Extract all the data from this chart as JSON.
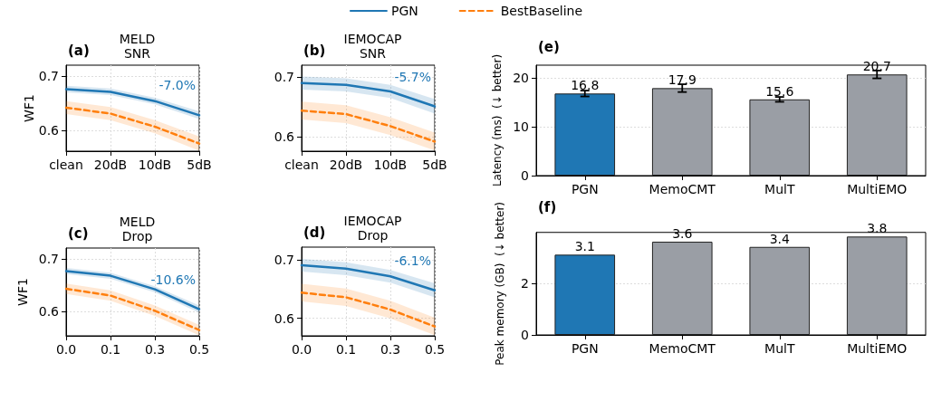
{
  "chart_data": [
    {
      "type": "line",
      "title": "MELD\nSNR",
      "ylabel": "WF1",
      "annotations": [
        "(a)",
        "-7.0%"
      ],
      "categories": [
        "clean",
        "20dB",
        "10dB",
        "5dB"
      ],
      "ylim": [
        0.562,
        0.72
      ],
      "yticks": [
        0.6,
        0.7
      ],
      "grid": true,
      "legend": "top",
      "marker": "none",
      "series": [
        {
          "name": "PGN",
          "color": "#1f77b4",
          "line_style": "solid",
          "values": [
            0.676,
            0.671,
            0.654,
            0.628
          ],
          "lower": [
            0.67,
            0.665,
            0.648,
            0.621
          ],
          "upper": [
            0.682,
            0.677,
            0.66,
            0.635
          ]
        },
        {
          "name": "BestBaseline",
          "color": "#ff7f0e",
          "line_style": "dashed",
          "values": [
            0.642,
            0.631,
            0.607,
            0.576
          ],
          "lower": [
            0.63,
            0.619,
            0.595,
            0.563
          ],
          "upper": [
            0.654,
            0.643,
            0.619,
            0.589
          ]
        }
      ]
    },
    {
      "type": "line",
      "title": "IEMOCAP\nSNR",
      "annotations": [
        "(b)",
        "-5.7%"
      ],
      "categories": [
        "clean",
        "20dB",
        "10dB",
        "5dB"
      ],
      "ylim": [
        0.576,
        0.72
      ],
      "yticks": [
        0.6,
        0.7
      ],
      "grid": true,
      "marker": "none",
      "series": [
        {
          "color": "#1f77b4",
          "line_style": "solid",
          "values": [
            0.69,
            0.687,
            0.676,
            0.651
          ],
          "lower": [
            0.679,
            0.676,
            0.665,
            0.639
          ],
          "upper": [
            0.701,
            0.698,
            0.687,
            0.663
          ]
        },
        {
          "color": "#ff7f0e",
          "line_style": "dashed",
          "values": [
            0.644,
            0.638,
            0.618,
            0.592
          ],
          "lower": [
            0.629,
            0.623,
            0.603,
            0.577
          ],
          "upper": [
            0.659,
            0.653,
            0.633,
            0.607
          ]
        }
      ]
    },
    {
      "type": "line",
      "title": "MELD\nDrop",
      "ylabel": "WF1",
      "annotations": [
        "(c)",
        "-10.6%"
      ],
      "categories": [
        "0.0",
        "0.1",
        "0.3",
        "0.5"
      ],
      "ylim": [
        0.553,
        0.721
      ],
      "yticks": [
        0.6,
        0.7
      ],
      "grid": true,
      "marker": "none",
      "series": [
        {
          "color": "#1f77b4",
          "line_style": "solid",
          "values": [
            0.677,
            0.668,
            0.642,
            0.604
          ],
          "lower": [
            0.671,
            0.662,
            0.636,
            0.597
          ],
          "upper": [
            0.683,
            0.674,
            0.648,
            0.611
          ]
        },
        {
          "color": "#ff7f0e",
          "line_style": "dashed",
          "values": [
            0.643,
            0.63,
            0.601,
            0.564
          ],
          "lower": [
            0.633,
            0.62,
            0.591,
            0.554
          ],
          "upper": [
            0.653,
            0.64,
            0.611,
            0.574
          ]
        }
      ]
    },
    {
      "type": "line",
      "title": "IEMOCAP\nDrop",
      "annotations": [
        "(d)",
        "-6.1%"
      ],
      "categories": [
        "0.0",
        "0.1",
        "0.3",
        "0.5"
      ],
      "ylim": [
        0.57,
        0.722
      ],
      "yticks": [
        0.6,
        0.7
      ],
      "grid": true,
      "marker": "none",
      "series": [
        {
          "color": "#1f77b4",
          "line_style": "solid",
          "values": [
            0.691,
            0.685,
            0.672,
            0.648
          ],
          "lower": [
            0.68,
            0.674,
            0.661,
            0.636
          ],
          "upper": [
            0.702,
            0.696,
            0.683,
            0.66
          ]
        },
        {
          "color": "#ff7f0e",
          "line_style": "dashed",
          "values": [
            0.644,
            0.636,
            0.615,
            0.586
          ],
          "lower": [
            0.629,
            0.621,
            0.6,
            0.571
          ],
          "upper": [
            0.659,
            0.651,
            0.63,
            0.601
          ]
        }
      ]
    },
    {
      "type": "bar",
      "ylabel": "Latency (ms)  (↓ better)",
      "annotations": [
        "(e)"
      ],
      "categories": [
        "PGN",
        "MemoCMT",
        "MulT",
        "MultiEMO"
      ],
      "values": [
        16.8,
        17.9,
        15.6,
        20.7
      ],
      "colors": [
        "#1f77b4",
        "#9a9ea5",
        "#9a9ea5",
        "#9a9ea5"
      ],
      "errors": [
        0.6,
        0.8,
        0.5,
        0.8
      ],
      "data_labels": true,
      "ylim": [
        0,
        22.6
      ],
      "yticks": [
        0,
        10,
        20
      ],
      "grid": "y"
    },
    {
      "type": "bar",
      "ylabel": "Peak memory (GB)  (↓ better)",
      "annotations": [
        "(f)"
      ],
      "categories": [
        "PGN",
        "MemoCMT",
        "MulT",
        "MultiEMO"
      ],
      "values": [
        3.1,
        3.6,
        3.4,
        3.8
      ],
      "colors": [
        "#1f77b4",
        "#9a9ea5",
        "#9a9ea5",
        "#9a9ea5"
      ],
      "data_labels": true,
      "ylim": [
        0,
        3.96
      ],
      "yticks": [
        0,
        2
      ],
      "grid": "y"
    }
  ]
}
